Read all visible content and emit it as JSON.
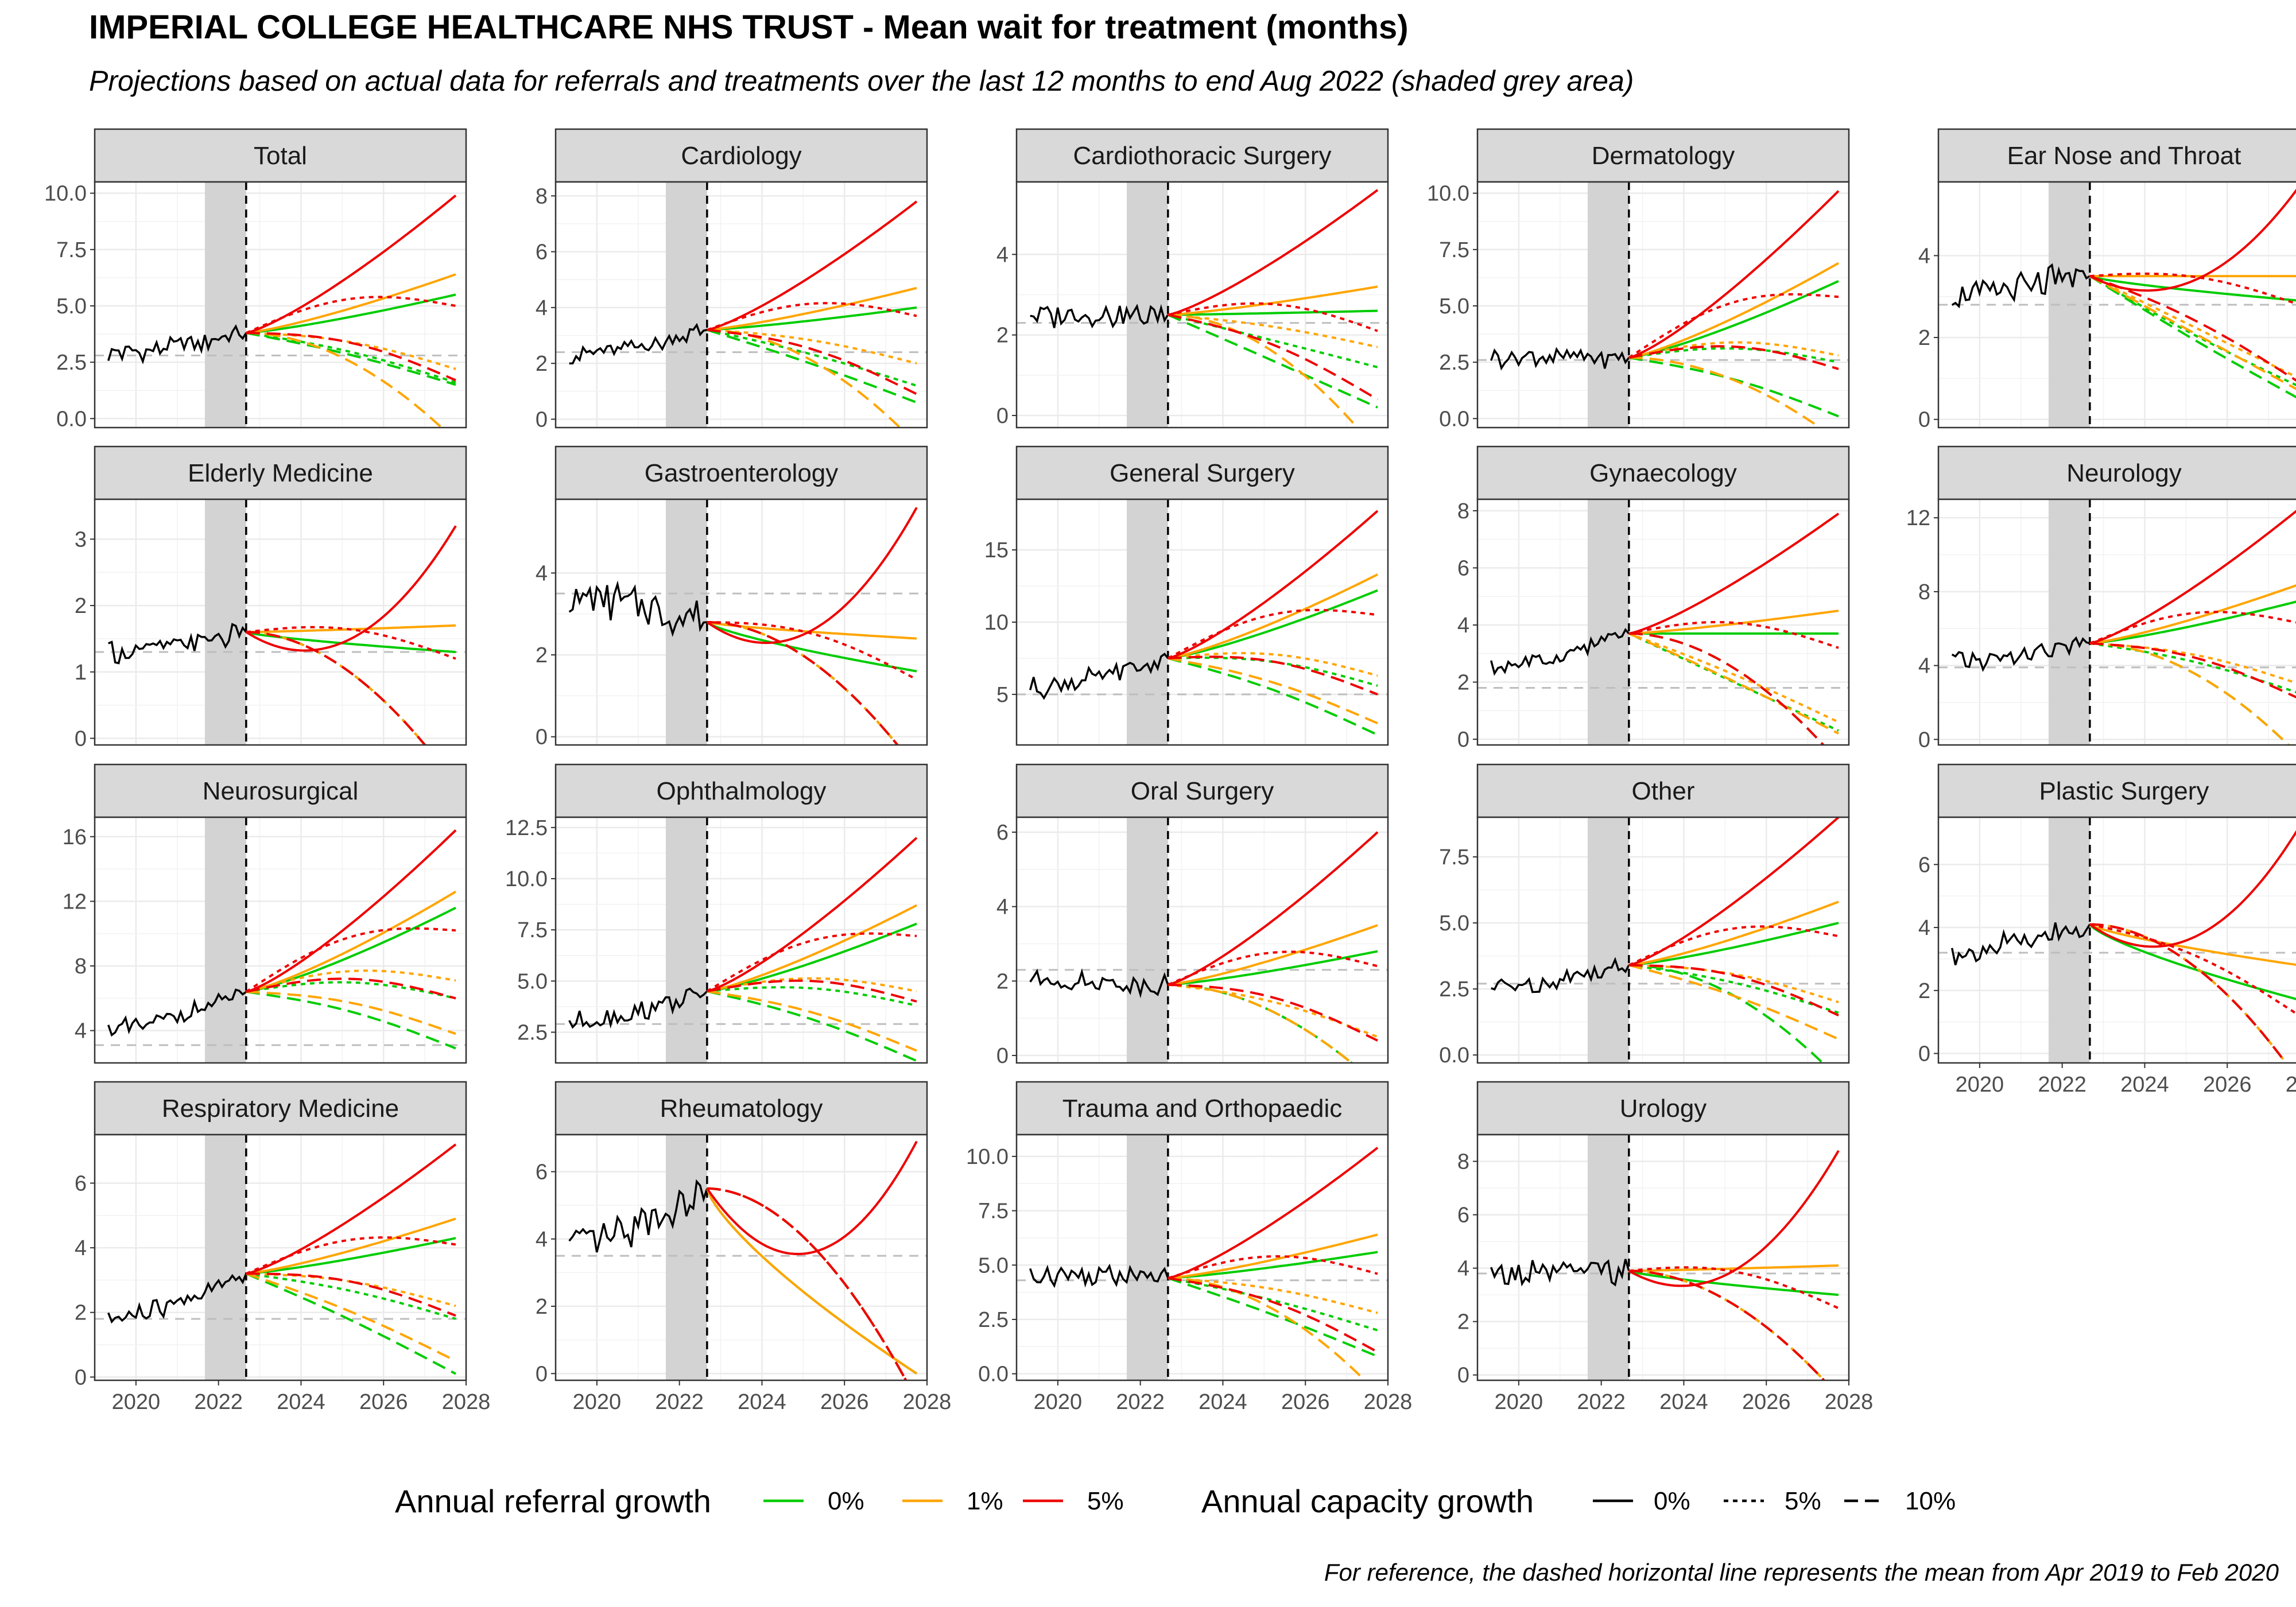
{
  "title": "IMPERIAL COLLEGE HEALTHCARE NHS TRUST - Mean wait for treatment (months)",
  "subtitle": "Projections based on actual data for referrals and treatments over the last 12 months to end Aug 2022 (shaded grey area)",
  "caption": "For reference, the dashed horizontal line represents the mean from Apr 2019 to Feb 2020",
  "colors": {
    "growth_0": "#00cc00",
    "growth_1": "#ffa500",
    "growth_5": "#ee0000",
    "actual": "#000000",
    "shade": "#d3d3d3",
    "reference": "#bebebe",
    "strip_bg": "#d9d9d9"
  },
  "legend": {
    "referral_title": "Annual referral growth",
    "referral_items": [
      "0%",
      "1%",
      "5%"
    ],
    "capacity_title": "Annual capacity growth",
    "capacity_items": [
      "0%",
      "5%",
      "10%"
    ]
  },
  "chart_data": {
    "type": "line",
    "xlim": [
      2019.0,
      2028.0
    ],
    "x_ticks": [
      "2020",
      "2022",
      "2024",
      "2026",
      "2028"
    ],
    "shaded_period": [
      2021.67,
      2022.67
    ],
    "projection_start": 2022.67,
    "projection_end": 2027.75,
    "facets": [
      {
        "name": "Total",
        "ylim": [
          -0.4,
          10.5
        ],
        "yticks": [
          "0.0",
          "2.5",
          "5.0",
          "7.5",
          "10.0"
        ],
        "ref": 2.8,
        "start": 3.8,
        "hist_base": 2.9,
        "ends": {
          "r0": [
            5.5,
            1.6,
            1.5
          ],
          "r1": [
            6.4,
            2.2,
            0.0
          ],
          "r5": [
            9.9,
            5.0,
            1.7
          ]
        },
        "mins": {}
      },
      {
        "name": "Cardiology",
        "ylim": [
          -0.3,
          8.5
        ],
        "yticks": [
          "0",
          "2",
          "4",
          "6",
          "8"
        ],
        "ref": 2.4,
        "start": 3.2,
        "hist_base": 2.3,
        "ends": {
          "r0": [
            4.0,
            1.2,
            0.6
          ],
          "r1": [
            4.7,
            2.0,
            0.0
          ],
          "r5": [
            7.8,
            3.7,
            0.9
          ]
        },
        "mins": {}
      },
      {
        "name": "Cardiothoracic Surgery",
        "ylim": [
          -0.3,
          5.8
        ],
        "yticks": [
          "0",
          "2",
          "4"
        ],
        "ref": 2.3,
        "start": 2.5,
        "hist_base": 2.5,
        "ends": {
          "r0": [
            2.6,
            1.2,
            0.2
          ],
          "r1": [
            3.2,
            1.7,
            0.0
          ],
          "r5": [
            5.6,
            2.1,
            0.4
          ]
        },
        "mins": {}
      },
      {
        "name": "Dermatology",
        "ylim": [
          -0.4,
          10.5
        ],
        "yticks": [
          "0.0",
          "2.5",
          "5.0",
          "7.5",
          "10.0"
        ],
        "ref": 2.6,
        "start": 2.7,
        "hist_base": 2.7,
        "ends": {
          "r0": [
            6.1,
            2.5,
            0.1
          ],
          "r1": [
            6.9,
            2.8,
            0.0
          ],
          "r5": [
            10.1,
            5.4,
            2.2
          ]
        },
        "mins": {}
      },
      {
        "name": "Ear Nose and Throat",
        "ylim": [
          -0.2,
          5.8
        ],
        "yticks": [
          "0",
          "2",
          "4"
        ],
        "ref": 2.8,
        "start": 3.5,
        "hist_base": 3.0,
        "ends": {
          "r0": [
            2.9,
            0.8,
            0.5
          ],
          "r1": [
            3.5,
            1.0,
            0.7
          ],
          "r5": [
            5.7,
            2.8,
            0.9
          ]
        },
        "mins": {
          "r5": 3.4
        }
      },
      {
        "name": "Elderly Medicine",
        "ylim": [
          -0.1,
          3.6
        ],
        "yticks": [
          "0",
          "1",
          "2",
          "3"
        ],
        "ref": 1.3,
        "start": 1.6,
        "hist_base": 1.3,
        "ends": {
          "r0": [
            1.3,
            0.0,
            0.0
          ],
          "r1": [
            1.7,
            0.0,
            0.0
          ],
          "r5": [
            3.2,
            1.2,
            0.0
          ]
        },
        "mins": {
          "r5": 1.5
        }
      },
      {
        "name": "Gastroenterology",
        "ylim": [
          -0.2,
          5.8
        ],
        "yticks": [
          "0",
          "2",
          "4"
        ],
        "ref": 3.5,
        "start": 2.8,
        "hist_base": 3.4,
        "ends": {
          "r0": [
            1.6,
            0.0,
            0.0
          ],
          "r1": [
            2.4,
            0.0,
            0.0
          ],
          "r5": [
            5.6,
            1.4,
            0.0
          ]
        },
        "mins": {
          "r5": 2.6
        }
      },
      {
        "name": "General Surgery",
        "ylim": [
          1.5,
          18.5
        ],
        "yticks": [
          "5",
          "10",
          "15"
        ],
        "ref": 5.0,
        "start": 7.5,
        "hist_base": 5.5,
        "ends": {
          "r0": [
            12.2,
            5.6,
            2.2
          ],
          "r1": [
            13.3,
            6.3,
            3.0
          ],
          "r5": [
            17.7,
            10.5,
            5.0
          ]
        },
        "mins": {}
      },
      {
        "name": "Gynaecology",
        "ylim": [
          -0.2,
          8.4
        ],
        "yticks": [
          "0",
          "2",
          "4",
          "6",
          "8"
        ],
        "ref": 1.8,
        "start": 3.7,
        "hist_base": 2.5,
        "ends": {
          "r0": [
            3.7,
            0.3,
            0.0
          ],
          "r1": [
            4.5,
            0.6,
            0.2
          ],
          "r5": [
            7.9,
            3.2,
            0.0
          ]
        },
        "mins": {}
      },
      {
        "name": "Neurology",
        "ylim": [
          -0.3,
          13.0
        ],
        "yticks": [
          "0",
          "4",
          "8",
          "12"
        ],
        "ref": 3.9,
        "start": 5.2,
        "hist_base": 4.2,
        "ends": {
          "r0": [
            7.5,
            2.5,
            0.0
          ],
          "r1": [
            8.4,
            3.0,
            0.0
          ],
          "r5": [
            12.5,
            6.3,
            2.2
          ]
        },
        "mins": {}
      },
      {
        "name": "Neurosurgical",
        "ylim": [
          2.0,
          17.2
        ],
        "yticks": [
          "4",
          "8",
          "12",
          "16"
        ],
        "ref": 3.1,
        "start": 6.4,
        "hist_base": 4.0,
        "ends": {
          "r0": [
            11.6,
            6.0,
            2.9
          ],
          "r1": [
            12.6,
            7.1,
            3.8
          ],
          "r5": [
            16.4,
            10.2,
            6.0
          ]
        },
        "mins": {}
      },
      {
        "name": "Ophthalmology",
        "ylim": [
          1.0,
          13.0
        ],
        "yticks": [
          "2.5",
          "5.0",
          "7.5",
          "10.0",
          "12.5"
        ],
        "ref": 2.9,
        "start": 4.5,
        "hist_base": 3.0,
        "ends": {
          "r0": [
            7.8,
            3.8,
            1.1
          ],
          "r1": [
            8.7,
            4.5,
            1.6
          ],
          "r5": [
            12.0,
            7.2,
            4.0
          ]
        },
        "mins": {}
      },
      {
        "name": "Oral Surgery",
        "ylim": [
          -0.2,
          6.4
        ],
        "yticks": [
          "0",
          "2",
          "4",
          "6"
        ],
        "ref": 2.3,
        "start": 1.9,
        "hist_base": 2.0,
        "ends": {
          "r0": [
            2.8,
            0.0,
            0.0
          ],
          "r1": [
            3.5,
            0.5,
            0.0
          ],
          "r5": [
            6.0,
            2.4,
            0.4
          ]
        },
        "mins": {}
      },
      {
        "name": "Other",
        "ylim": [
          -0.3,
          9.0
        ],
        "yticks": [
          "0.0",
          "2.5",
          "5.0",
          "7.5"
        ],
        "ref": 2.7,
        "start": 3.4,
        "hist_base": 2.6,
        "ends": {
          "r0": [
            5.0,
            1.6,
            0.0
          ],
          "r1": [
            5.8,
            2.0,
            0.6
          ],
          "r5": [
            9.0,
            4.5,
            1.5
          ]
        },
        "mins": {}
      },
      {
        "name": "Plastic Surgery",
        "ylim": [
          -0.3,
          7.5
        ],
        "yticks": [
          "0",
          "2",
          "4",
          "6"
        ],
        "ref": 3.2,
        "start": 4.1,
        "hist_base": 3.2,
        "ends": {
          "r0": [
            1.7,
            0.0,
            0.0
          ],
          "r1": [
            2.8,
            0.0,
            0.0
          ],
          "r5": [
            7.2,
            1.2,
            0.0
          ]
        },
        "mins": {
          "r5": 3.7
        }
      },
      {
        "name": "Respiratory Medicine",
        "ylim": [
          -0.1,
          7.5
        ],
        "yticks": [
          "0",
          "2",
          "4",
          "6"
        ],
        "ref": 1.8,
        "start": 3.2,
        "hist_base": 1.8,
        "ends": {
          "r0": [
            4.3,
            1.8,
            0.1
          ],
          "r1": [
            4.9,
            2.2,
            0.5
          ],
          "r5": [
            7.2,
            4.1,
            1.9
          ]
        },
        "mins": {}
      },
      {
        "name": "Rheumatology",
        "ylim": [
          -0.2,
          7.1
        ],
        "yticks": [
          "0",
          "2",
          "4",
          "6"
        ],
        "ref": 3.5,
        "start": 5.5,
        "hist_base": 3.8,
        "ends": {
          "r0": [
            0.0,
            0.0,
            0.0
          ],
          "r1": [
            0.0,
            0.0,
            0.0
          ],
          "r5": [
            6.9,
            0.0,
            0.0
          ]
        },
        "mins": {
          "r5": 3.6
        }
      },
      {
        "name": "Trauma and Orthopaedic",
        "ylim": [
          -0.3,
          11.0
        ],
        "yticks": [
          "0.0",
          "2.5",
          "5.0",
          "7.5",
          "10.0"
        ],
        "ref": 4.3,
        "start": 4.4,
        "hist_base": 4.6,
        "ends": {
          "r0": [
            5.6,
            2.0,
            0.8
          ],
          "r1": [
            6.4,
            2.8,
            0.0
          ],
          "r5": [
            10.4,
            4.6,
            1.0
          ]
        },
        "mins": {}
      },
      {
        "name": "Urology",
        "ylim": [
          -0.2,
          9.0
        ],
        "yticks": [
          "0",
          "2",
          "4",
          "6",
          "8"
        ],
        "ref": 3.8,
        "start": 3.9,
        "hist_base": 3.8,
        "ends": {
          "r0": [
            3.0,
            0.0,
            0.0
          ],
          "r1": [
            4.1,
            0.0,
            0.0
          ],
          "r5": [
            8.4,
            2.5,
            0.0
          ]
        },
        "mins": {
          "r5": 3.9
        }
      }
    ]
  }
}
